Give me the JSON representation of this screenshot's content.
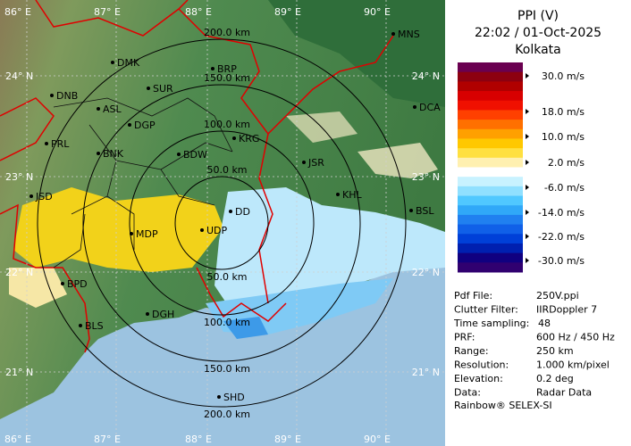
{
  "header": {
    "title": "PPI (V)",
    "datetime": "22:02 / 01-Oct-2025",
    "site": "Kolkata"
  },
  "scale": {
    "labels": [
      "30.0 m/s",
      "18.0 m/s",
      "10.0 m/s",
      "2.0 m/s",
      "-6.0 m/s",
      "-14.0 m/s",
      "-22.0 m/s",
      "-30.0 m/s"
    ]
  },
  "info": [
    [
      "Pdf File:",
      "250V.ppi"
    ],
    [
      "Clutter Filter:",
      "IIRDoppler 7"
    ],
    [
      "Time sampling:",
      "48"
    ],
    [
      "PRF:",
      "600 Hz / 450 Hz"
    ],
    [
      "Range:",
      "250 km"
    ],
    [
      "Resolution:",
      "1.000 km/pixel"
    ],
    [
      "Elevation:",
      "0.2 deg"
    ],
    [
      "Data:",
      "Radar Data"
    ]
  ],
  "footer": "Rainbow® SELEX-SI",
  "map": {
    "longitudes": [
      "86° E",
      "87° E",
      "88° E",
      "89° E",
      "90° E"
    ],
    "latitudes": [
      "24° N",
      "23° N",
      "22° N",
      "21° N"
    ],
    "ranges_north": [
      "200.0 km",
      "150.0 km",
      "100.0 km",
      "50.0 km"
    ],
    "ranges_south": [
      "50.0 km",
      "100.0 km",
      "150.0 km",
      "200.0 km"
    ],
    "stations": [
      "MNS",
      "DMK",
      "BRP",
      "DNB",
      "SUR",
      "ASL",
      "DGP",
      "KRG",
      "PRL",
      "BNK",
      "BDW",
      "JSR",
      "JSD",
      "KHL",
      "DCA",
      "BSL",
      "MDP",
      "DD",
      "UDP",
      "BPD",
      "DGH",
      "BLS",
      "SHD"
    ]
  }
}
